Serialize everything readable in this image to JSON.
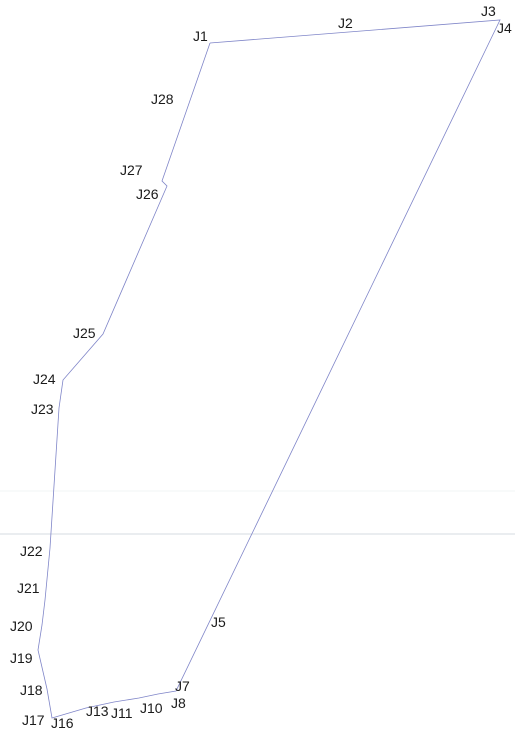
{
  "colors": {
    "background": "#ffffff",
    "boundary_line": "#7f85c8",
    "horizontal_line": "#c8cfd8",
    "faint_line": "#eef0f3",
    "label_text": "#1a1a1a"
  },
  "labels": {
    "J1": "J1",
    "J2": "J2",
    "J3": "J3",
    "J4": "J4",
    "J5": "J5",
    "J7": "J7",
    "J8": "J8",
    "J10": "J10",
    "J11": "J11",
    "J13": "J13",
    "J16": "J16",
    "J17": "J17",
    "J18": "J18",
    "J19": "J19",
    "J20": "J20",
    "J21": "J21",
    "J22": "J22",
    "J23": "J23",
    "J24": "J24",
    "J25": "J25",
    "J26": "J26",
    "J27": "J27",
    "J28": "J28"
  }
}
